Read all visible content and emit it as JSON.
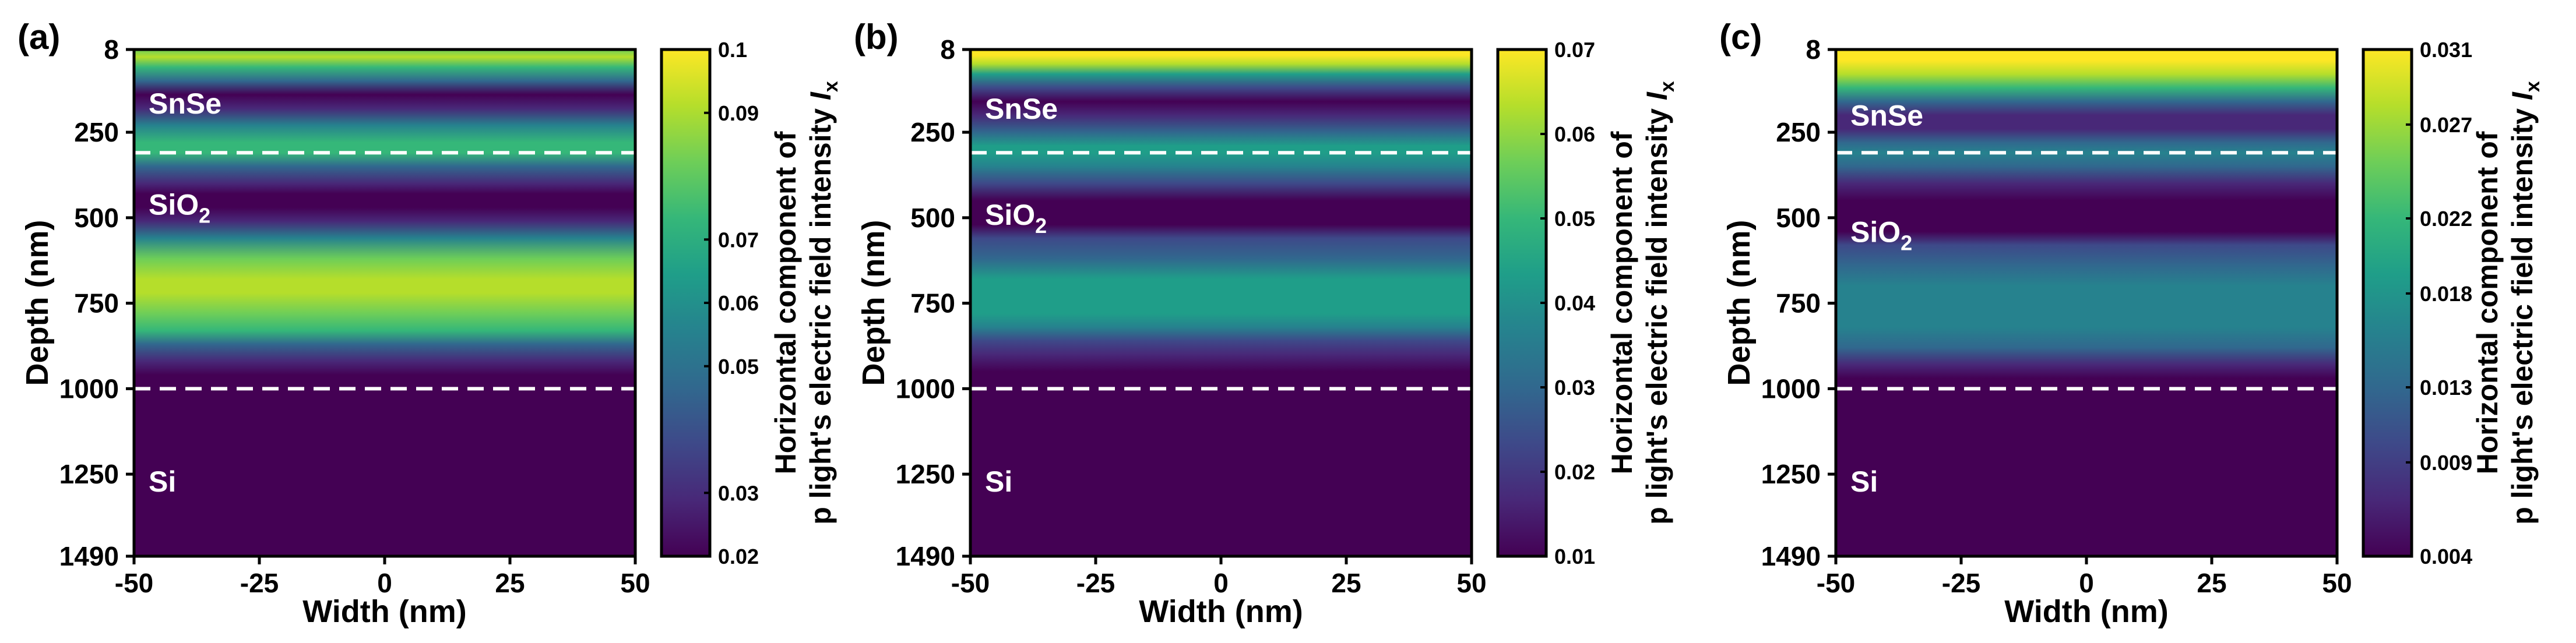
{
  "colors": {
    "viridis": [
      "#440154",
      "#482878",
      "#3e4989",
      "#31688e",
      "#26828e",
      "#1f9e89",
      "#35b779",
      "#6ece58",
      "#b5de2b",
      "#fde725"
    ],
    "boundary_line": "#ffffff",
    "layer_label": "#ffffff",
    "text": "#000000"
  },
  "chart_data": [
    {
      "panel_label": "(a)",
      "type": "heatmap",
      "xlabel": "Width (nm)",
      "ylabel": "Depth (nm)",
      "xlim": [
        -50,
        50
      ],
      "ylim": [
        8,
        1490
      ],
      "x_ticks": [
        -50,
        -25,
        0,
        25,
        50
      ],
      "x_tick_labels": [
        "-50",
        "-25",
        "0",
        "25",
        "50"
      ],
      "y_ticks": [
        8,
        250,
        500,
        750,
        1000,
        1250,
        1490
      ],
      "y_tick_labels": [
        "8",
        "250",
        "500",
        "750",
        "1000",
        "1250",
        "1490"
      ],
      "colorbar": {
        "min": 0.02,
        "max": 0.1,
        "ticks": [
          0.02,
          0.03,
          0.05,
          0.06,
          0.07,
          0.09,
          0.1
        ],
        "tick_labels": [
          "0.02",
          "0.03",
          "0.05",
          "0.06",
          "0.07",
          "0.09",
          "0.1"
        ],
        "label_line1": "Horizontal component of",
        "label_line2": "p light's electric field intensity ",
        "label_symbol": "I",
        "label_subscript": "x"
      },
      "depth_profile": {
        "depths": [
          8,
          30,
          60,
          100,
          140,
          180,
          230,
          280,
          310,
          350,
          400,
          430,
          470,
          510,
          560,
          620,
          680,
          720,
          780,
          830,
          870,
          920,
          960,
          1000,
          1490
        ],
        "values": [
          0.08,
          0.095,
          0.075,
          0.045,
          0.022,
          0.03,
          0.06,
          0.075,
          0.07,
          0.05,
          0.028,
          0.022,
          0.021,
          0.03,
          0.055,
          0.078,
          0.088,
          0.09,
          0.086,
          0.07,
          0.045,
          0.025,
          0.021,
          0.02,
          0.02
        ]
      },
      "boundaries": [
        310,
        1000
      ],
      "layers": [
        {
          "name": "SnSe",
          "subscript": "",
          "depth": 165
        },
        {
          "name": "SiO",
          "subscript": "2",
          "depth": 460
        },
        {
          "name": "Si",
          "subscript": "",
          "depth": 1270
        }
      ]
    },
    {
      "panel_label": "(b)",
      "type": "heatmap",
      "xlabel": "Width (nm)",
      "ylabel": "Depth (nm)",
      "xlim": [
        -50,
        50
      ],
      "ylim": [
        8,
        1490
      ],
      "x_ticks": [
        -50,
        -25,
        0,
        25,
        50
      ],
      "x_tick_labels": [
        "-50",
        "-25",
        "0",
        "25",
        "50"
      ],
      "y_ticks": [
        8,
        250,
        500,
        750,
        1000,
        1250,
        1490
      ],
      "y_tick_labels": [
        "8",
        "250",
        "500",
        "750",
        "1000",
        "1250",
        "1490"
      ],
      "colorbar": {
        "min": 0.01,
        "max": 0.07,
        "ticks": [
          0.01,
          0.02,
          0.03,
          0.04,
          0.05,
          0.06,
          0.07
        ],
        "tick_labels": [
          "0.01",
          "0.02",
          "0.03",
          "0.04",
          "0.05",
          "0.06",
          "0.07"
        ],
        "label_line1": "Horizontal component of",
        "label_line2": "p light's electric field intensity ",
        "label_symbol": "I",
        "label_subscript": "x"
      },
      "depth_profile": {
        "depths": [
          8,
          25,
          50,
          80,
          120,
          160,
          200,
          250,
          290,
          310,
          350,
          400,
          450,
          480,
          520,
          560,
          620,
          680,
          720,
          780,
          820,
          860,
          900,
          950,
          1000,
          1490
        ],
        "values": [
          0.068,
          0.07,
          0.062,
          0.045,
          0.025,
          0.013,
          0.015,
          0.03,
          0.042,
          0.045,
          0.035,
          0.02,
          0.012,
          0.011,
          0.013,
          0.02,
          0.032,
          0.042,
          0.045,
          0.043,
          0.036,
          0.025,
          0.016,
          0.011,
          0.01,
          0.01
        ]
      },
      "boundaries": [
        310,
        1000
      ],
      "layers": [
        {
          "name": "SnSe",
          "subscript": "",
          "depth": 180
        },
        {
          "name": "SiO",
          "subscript": "2",
          "depth": 490
        },
        {
          "name": "Si",
          "subscript": "",
          "depth": 1270
        }
      ]
    },
    {
      "panel_label": "(c)",
      "type": "heatmap",
      "xlabel": "Width (nm)",
      "ylabel": "Depth (nm)",
      "xlim": [
        -50,
        50
      ],
      "ylim": [
        8,
        1490
      ],
      "x_ticks": [
        -50,
        -25,
        0,
        25,
        50
      ],
      "x_tick_labels": [
        "-50",
        "-25",
        "0",
        "25",
        "50"
      ],
      "y_ticks": [
        8,
        250,
        500,
        750,
        1000,
        1250,
        1490
      ],
      "y_tick_labels": [
        "8",
        "250",
        "500",
        "750",
        "1000",
        "1250",
        "1490"
      ],
      "colorbar": {
        "min": 0.004,
        "max": 0.031,
        "ticks": [
          0.004,
          0.009,
          0.013,
          0.018,
          0.022,
          0.027,
          0.031
        ],
        "tick_labels": [
          "0.004",
          "0.009",
          "0.013",
          "0.018",
          "0.022",
          "0.027",
          "0.031"
        ],
        "label_line1": "Horizontal component of",
        "label_line2": "p light's electric field intensity ",
        "label_symbol": "I",
        "label_subscript": "x"
      },
      "depth_profile": {
        "depths": [
          8,
          40,
          80,
          120,
          160,
          200,
          240,
          280,
          310,
          350,
          400,
          450,
          500,
          540,
          580,
          640,
          700,
          760,
          820,
          880,
          930,
          970,
          1000,
          1490
        ],
        "values": [
          0.031,
          0.031,
          0.029,
          0.022,
          0.012,
          0.006,
          0.008,
          0.013,
          0.015,
          0.013,
          0.008,
          0.005,
          0.0045,
          0.005,
          0.009,
          0.014,
          0.0165,
          0.017,
          0.0165,
          0.013,
          0.008,
          0.005,
          0.004,
          0.004
        ]
      },
      "boundaries": [
        310,
        1000
      ],
      "layers": [
        {
          "name": "SnSe",
          "subscript": "",
          "depth": 200
        },
        {
          "name": "SiO",
          "subscript": "2",
          "depth": 540
        },
        {
          "name": "Si",
          "subscript": "",
          "depth": 1270
        }
      ]
    }
  ]
}
